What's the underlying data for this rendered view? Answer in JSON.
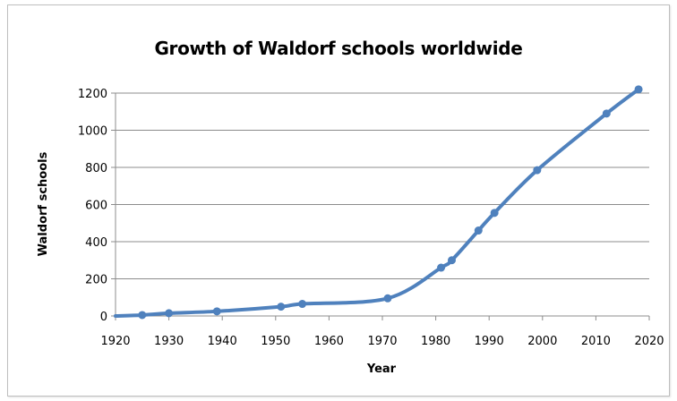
{
  "chart_data": {
    "type": "line",
    "title": "Growth of Waldorf schools worldwide",
    "xlabel": "Year",
    "ylabel": "Waldorf schools",
    "xlim": [
      1920,
      2020
    ],
    "ylim": [
      0,
      1200
    ],
    "xticks": [
      "1920",
      "1930",
      "1940",
      "1950",
      "1960",
      "1970",
      "1980",
      "1990",
      "2000",
      "2010",
      "2020"
    ],
    "yticks": [
      "0",
      "200",
      "400",
      "600",
      "800",
      "1000",
      "1200"
    ],
    "grid": "horizontal",
    "legend": "none",
    "smooth": true,
    "series": [
      {
        "color": "#4f81bd",
        "x": [
          1925,
          1930,
          1939,
          1951,
          1955,
          1971,
          1981,
          1983,
          1988,
          1991,
          1999,
          2012,
          2018
        ],
        "y": [
          5,
          15,
          25,
          50,
          65,
          95,
          260,
          300,
          460,
          555,
          785,
          1090,
          1220
        ]
      }
    ]
  }
}
